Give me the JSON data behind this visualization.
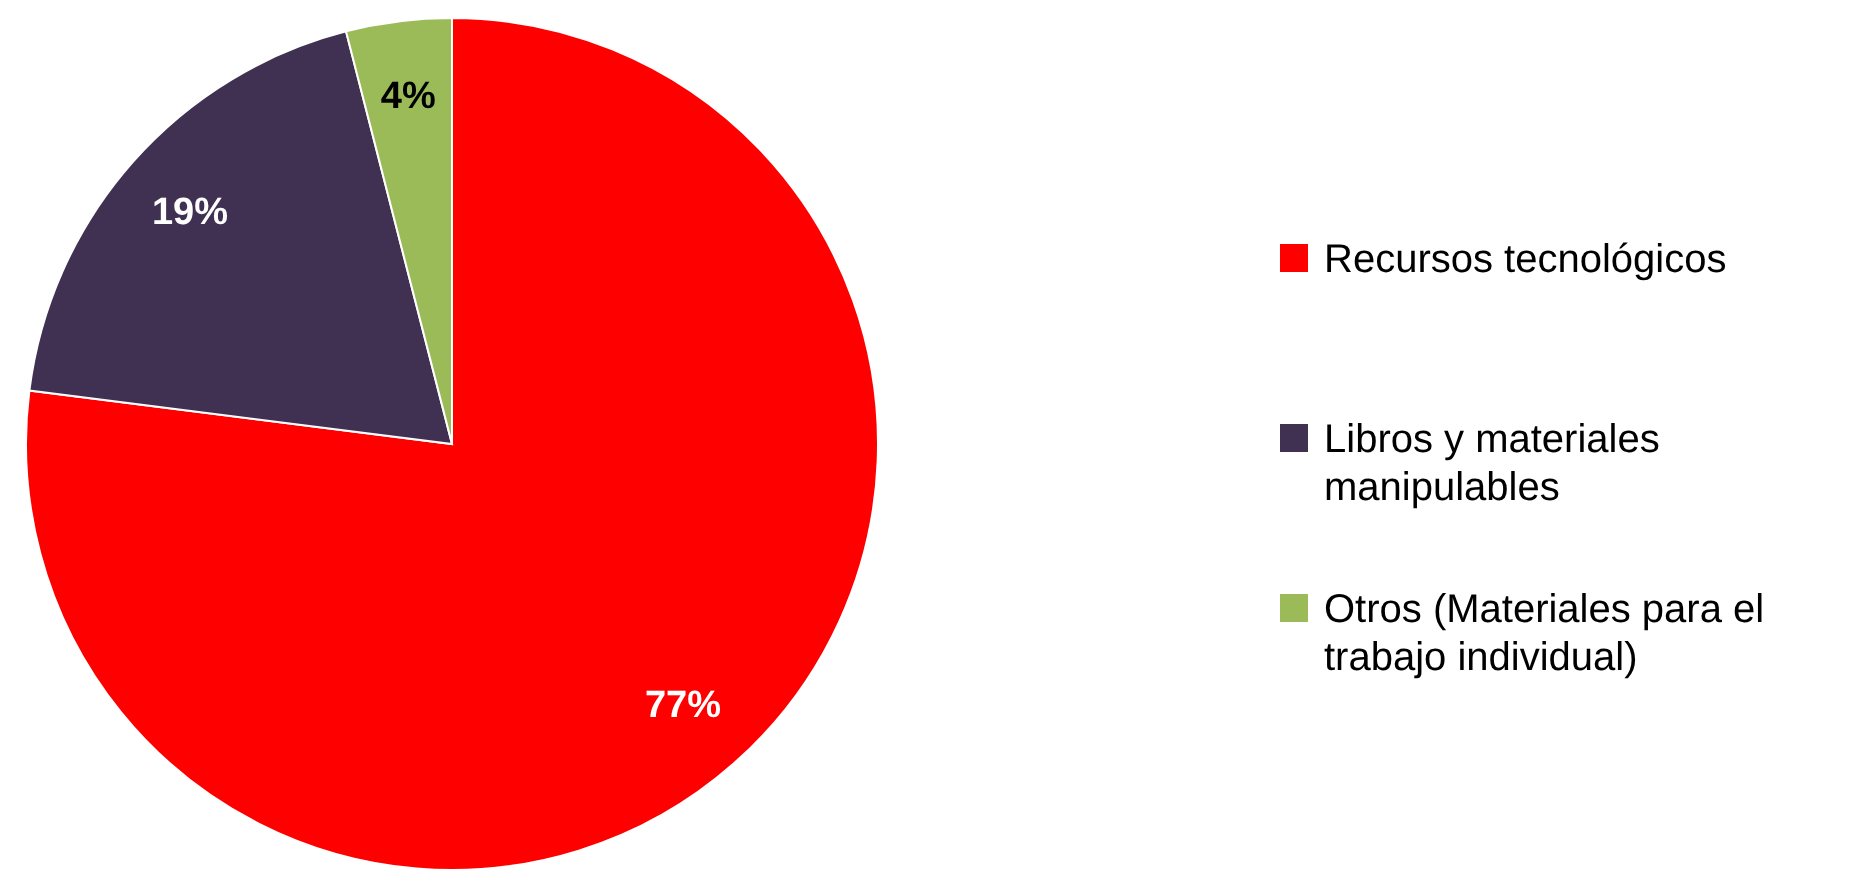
{
  "chart_data": {
    "type": "pie",
    "categories": [
      "Recursos tecnológicos",
      "Libros y materiales manipulables",
      "Otros (Materiales para el trabajo individual)"
    ],
    "values": [
      77,
      19,
      4
    ],
    "colors": [
      "#ff0000",
      "#403152",
      "#9bbb59"
    ],
    "value_labels": [
      "77%",
      "19%",
      "4%"
    ],
    "legend": "right"
  }
}
